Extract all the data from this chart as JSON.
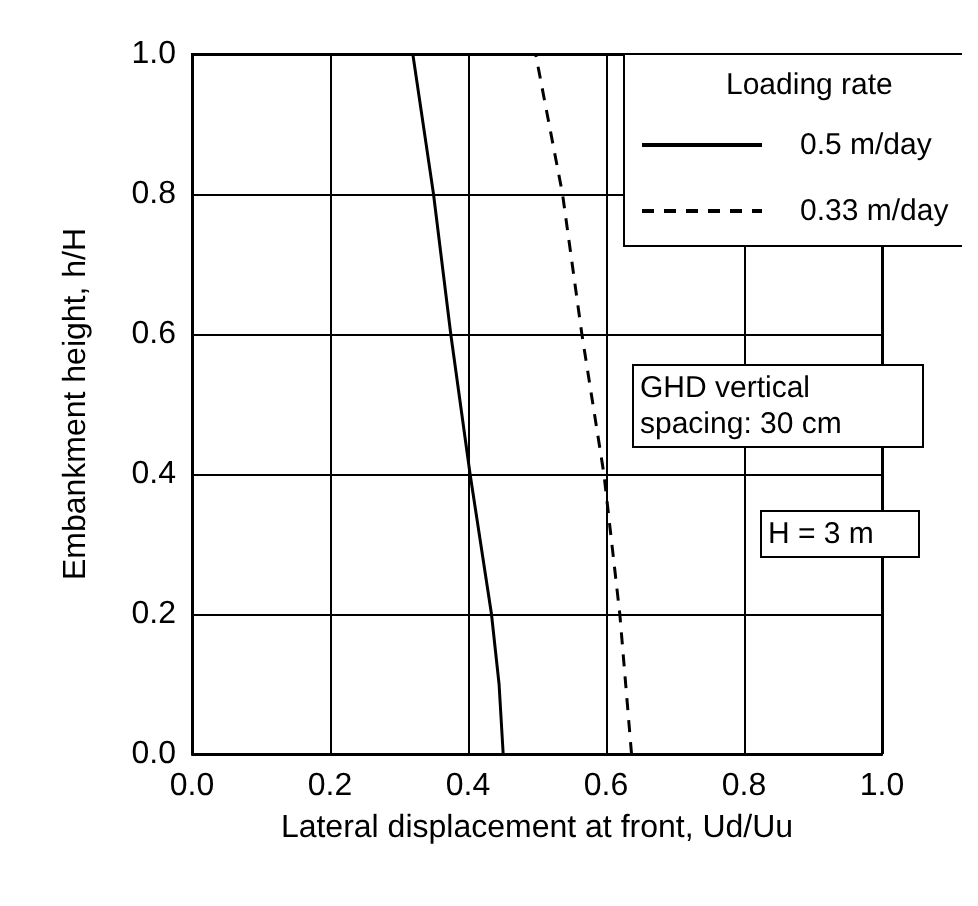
{
  "chart_data": {
    "type": "line",
    "xlabel": "Lateral displacement at front, Ud/Uu",
    "ylabel": "Embankment height, h/H",
    "legend_title": "Loading rate",
    "legend": "top right",
    "grid": true,
    "marker": "none",
    "xlim": [
      0,
      1
    ],
    "ylim": [
      0,
      1
    ],
    "xticks": [
      {
        "value": 0,
        "label": "0.0"
      },
      {
        "value": 0.2,
        "label": "0.2"
      },
      {
        "value": 0.4,
        "label": "0.4"
      },
      {
        "value": 0.6,
        "label": "0.6"
      },
      {
        "value": 0.8,
        "label": "0.8"
      },
      {
        "value": 1,
        "label": "1.0"
      }
    ],
    "yticks": [
      {
        "value": 0,
        "label": "0.0"
      },
      {
        "value": 0.2,
        "label": "0.2"
      },
      {
        "value": 0.4,
        "label": "0.4"
      },
      {
        "value": 0.6,
        "label": "0.6"
      },
      {
        "value": 0.8,
        "label": "0.8"
      },
      {
        "value": 1,
        "label": "1.0"
      }
    ],
    "series": [
      {
        "name": "0.5 m/day",
        "color": "#000000",
        "line_style": "solid",
        "x": [
          0.451,
          0.445,
          0.434,
          0.403,
          0.375,
          0.35,
          0.32
        ],
        "values": [
          0,
          0.1,
          0.2,
          0.4,
          0.6,
          0.8,
          1
        ]
      },
      {
        "name": "0.33 m/day",
        "color": "#000000",
        "line_style": "dashed",
        "x": [
          0.637,
          0.62,
          0.597,
          0.565,
          0.537,
          0.498
        ],
        "values": [
          0,
          0.2,
          0.4,
          0.6,
          0.8,
          1
        ]
      }
    ],
    "annotations": [
      "GHD vertical spacing: 30 cm",
      "H = 3 m"
    ]
  }
}
